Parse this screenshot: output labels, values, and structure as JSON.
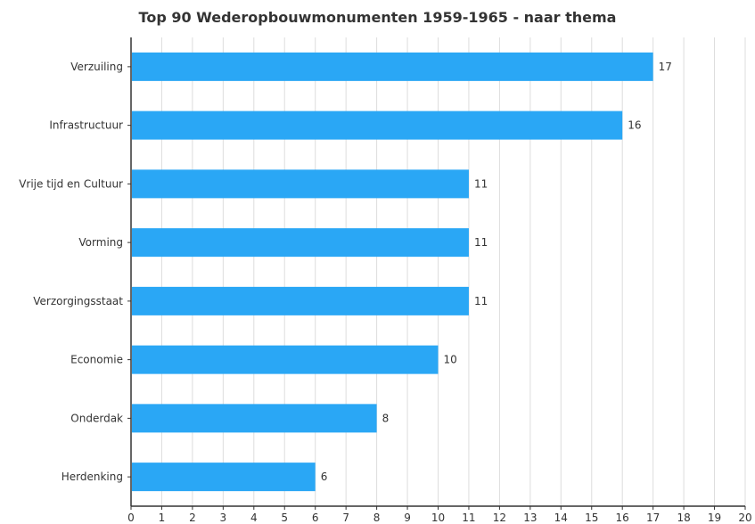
{
  "chart_data": {
    "type": "bar",
    "orientation": "horizontal",
    "title": "Top 90 Wederopbouwmonumenten 1959-1965 - naar thema",
    "categories": [
      "Verzuiling",
      "Infrastructuur",
      "Vrije tijd en Cultuur",
      "Vorming",
      "Verzorgingsstaat",
      "Economie",
      "Onderdak",
      "Herdenking"
    ],
    "values": [
      17,
      16,
      11,
      11,
      11,
      10,
      8,
      6
    ],
    "data_labels": [
      "17",
      "16",
      "11",
      "11",
      "11",
      "10",
      "8",
      "6"
    ],
    "xlabel": "",
    "ylabel": "",
    "xlim": [
      0,
      20
    ],
    "x_ticks": [
      "0",
      "1",
      "2",
      "3",
      "4",
      "5",
      "6",
      "7",
      "8",
      "9",
      "10",
      "11",
      "12",
      "13",
      "14",
      "15",
      "16",
      "17",
      "18",
      "19",
      "20"
    ],
    "grid": "vertical",
    "legend": "none",
    "bar_color": "#2aa7f5",
    "grid_color": "#dddddd",
    "text_color": "#333333"
  }
}
